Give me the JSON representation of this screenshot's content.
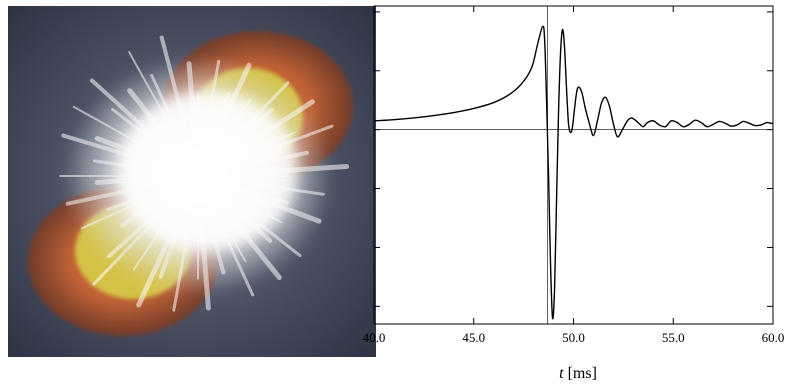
{
  "image_panel": {
    "icon": "supernova-explosion-illustration",
    "colors": {
      "space": "#3b4153",
      "shell": "#9a4a2c",
      "glow": "#f3f1ee",
      "front": "#d8d34a"
    }
  },
  "chart_data": {
    "type": "line",
    "title": "",
    "xlabel": "t [ms]",
    "xlabel_var": "t",
    "xlabel_unit": " [ms]",
    "ylabel": "",
    "xlim": [
      40,
      60
    ],
    "ylim": [
      -3.3,
      2.1
    ],
    "x_ticks": [
      40,
      45,
      50,
      55,
      60
    ],
    "x_tick_labels": [
      "40.0",
      "45.0",
      "50.0",
      "55.0",
      "60.0"
    ],
    "y_ticks": [
      -3,
      -2,
      -1,
      0,
      1,
      2
    ],
    "grid": false,
    "reference_lines": {
      "horizontal_y": 0,
      "vertical_x": 48.7
    },
    "series": [
      {
        "color": "#000000",
        "x": [
          40.0,
          41.0,
          42.0,
          43.0,
          44.0,
          45.0,
          46.0,
          46.8,
          47.4,
          47.9,
          48.2,
          48.45,
          48.55,
          48.65,
          48.75,
          48.85,
          48.95,
          49.05,
          49.15,
          49.25,
          49.35,
          49.45,
          49.55,
          49.65,
          49.75,
          49.85,
          49.95,
          50.05,
          50.2,
          50.4,
          50.6,
          50.8,
          51.0,
          51.2,
          51.4,
          51.6,
          51.8,
          52.0,
          52.2,
          52.45,
          52.7,
          52.9,
          53.1,
          53.3,
          53.5,
          53.7,
          54.0,
          54.3,
          54.6,
          54.9,
          55.2,
          55.5,
          55.8,
          56.1,
          56.4,
          56.7,
          57.0,
          57.3,
          57.6,
          57.9,
          58.2,
          58.5,
          58.8,
          59.1,
          59.4,
          59.7,
          60.0
        ],
        "y": [
          0.15,
          0.17,
          0.2,
          0.24,
          0.29,
          0.36,
          0.46,
          0.6,
          0.78,
          1.05,
          1.45,
          1.75,
          1.55,
          0.5,
          -0.8,
          -2.3,
          -3.2,
          -2.7,
          -1.2,
          0.3,
          1.3,
          1.7,
          1.4,
          0.7,
          0.1,
          -0.05,
          0.05,
          0.35,
          0.7,
          0.65,
          0.35,
          0.1,
          -0.1,
          0.15,
          0.45,
          0.55,
          0.4,
          0.1,
          -0.12,
          0.0,
          0.15,
          0.2,
          0.16,
          0.1,
          0.05,
          0.12,
          0.15,
          0.08,
          0.05,
          0.15,
          0.12,
          0.05,
          0.09,
          0.16,
          0.12,
          0.05,
          0.09,
          0.14,
          0.11,
          0.06,
          0.08,
          0.14,
          0.11,
          0.07,
          0.08,
          0.12,
          0.1
        ]
      }
    ]
  }
}
